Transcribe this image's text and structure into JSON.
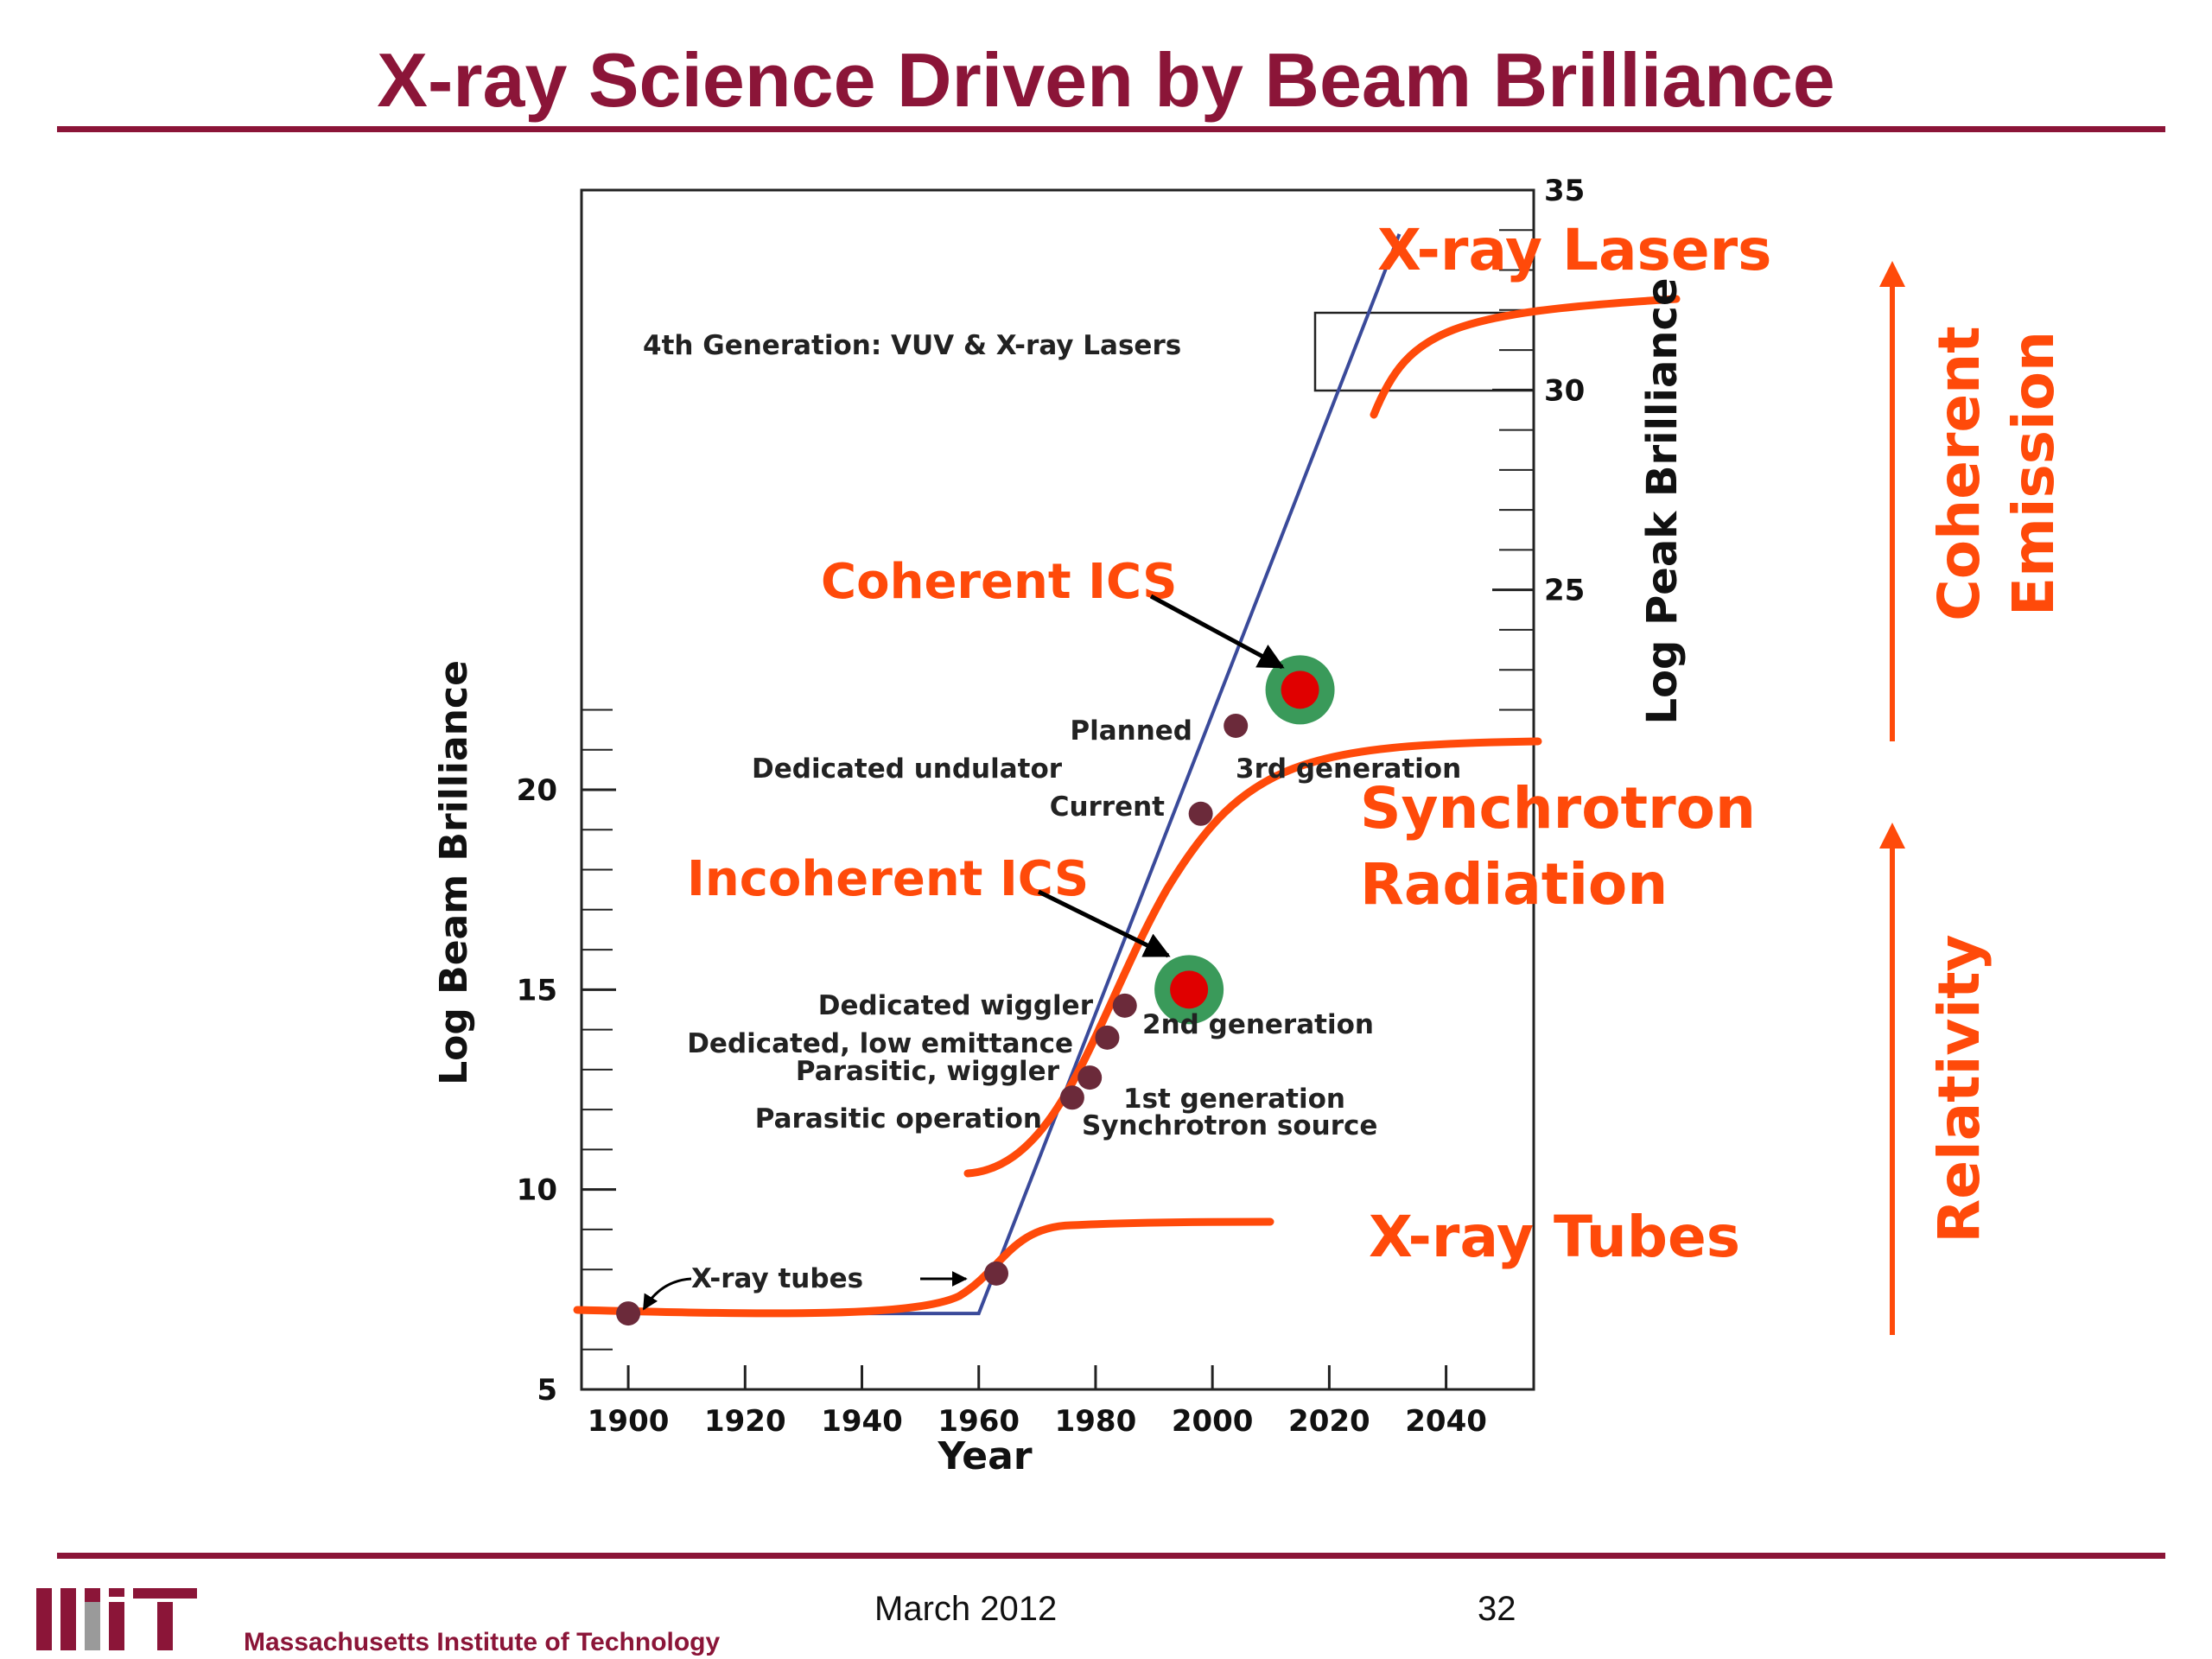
{
  "slide": {
    "title": "X-ray Science Driven by Beam Brilliance",
    "footer_date": "March 2012",
    "footer_page": "32",
    "institution": "Massachusetts Institute of Technology",
    "logo_text": "MIT"
  },
  "colors": {
    "accent": "#8b1538",
    "highlight": "#ff4a0a",
    "trend_line": "#3a4a9a",
    "marker": "#6b2a3a",
    "ics_ring": "#3a9a5a",
    "ics_core": "#e00000"
  },
  "chart_data": {
    "type": "scatter",
    "xlabel": "Year",
    "ylabel": "Log Beam Brilliance",
    "y2label": "Log Peak Brilliance",
    "xlim": [
      1892,
      2055
    ],
    "ylim": [
      5,
      35
    ],
    "x_ticks": [
      1900,
      1920,
      1940,
      1960,
      1980,
      2000,
      2020,
      2040
    ],
    "y_ticks": [
      5,
      10,
      15,
      20
    ],
    "y2_ticks": [
      25,
      30,
      35
    ],
    "y2_tick_labels": [
      "25",
      "30",
      "35"
    ],
    "trend_line": [
      [
        1900,
        6.9
      ],
      [
        1960,
        6.9
      ],
      [
        2032,
        33.9
      ]
    ],
    "milestones": [
      {
        "label": "X-ray tubes",
        "x": 1900,
        "y": 6.9
      },
      {
        "label": "X-ray tubes",
        "x": 1963,
        "y": 7.9
      },
      {
        "label": "Parasitic operation",
        "x": 1976,
        "y": 12.3
      },
      {
        "label": "Parasitic, wiggler",
        "x": 1979,
        "y": 12.8
      },
      {
        "label": "Dedicated, low emittance",
        "x": 1982,
        "y": 13.8
      },
      {
        "label": "Dedicated wiggler",
        "x": 1985,
        "y": 14.6
      },
      {
        "label": "Current",
        "x": 1998,
        "y": 19.4
      },
      {
        "label": "Planned",
        "x": 2004,
        "y": 21.6
      }
    ],
    "generation_labels": [
      {
        "text": "1st generation",
        "x": 1980,
        "y": 12.2
      },
      {
        "text": "Synchrotron source",
        "x": 1980,
        "y": 11.5
      },
      {
        "text": "2nd generation",
        "x": 1990,
        "y": 14.1
      },
      {
        "text": "3rd generation",
        "x": 2004,
        "y": 20.3
      },
      {
        "text": "Dedicated undulator",
        "x": 1920,
        "y": 20.3
      },
      {
        "text": "4th Generation: VUV & X-ray Lasers",
        "x": 1910,
        "y": 31.4
      }
    ],
    "ics_points": [
      {
        "label": "Incoherent ICS",
        "x": 1996,
        "y": 15.0
      },
      {
        "label": "Coherent ICS",
        "x": 2015,
        "y": 22.5
      }
    ],
    "regions": [
      {
        "label": "X-ray Tubes"
      },
      {
        "label": "Synchrotron Radiation",
        "lines": [
          "Synchrotron",
          "Radiation"
        ]
      },
      {
        "label": "X-ray Lasers"
      }
    ],
    "side_arrows": [
      {
        "label": "Relativity"
      },
      {
        "label": "Coherent Emission",
        "lines": [
          "Coherent",
          "Emission"
        ]
      }
    ]
  }
}
